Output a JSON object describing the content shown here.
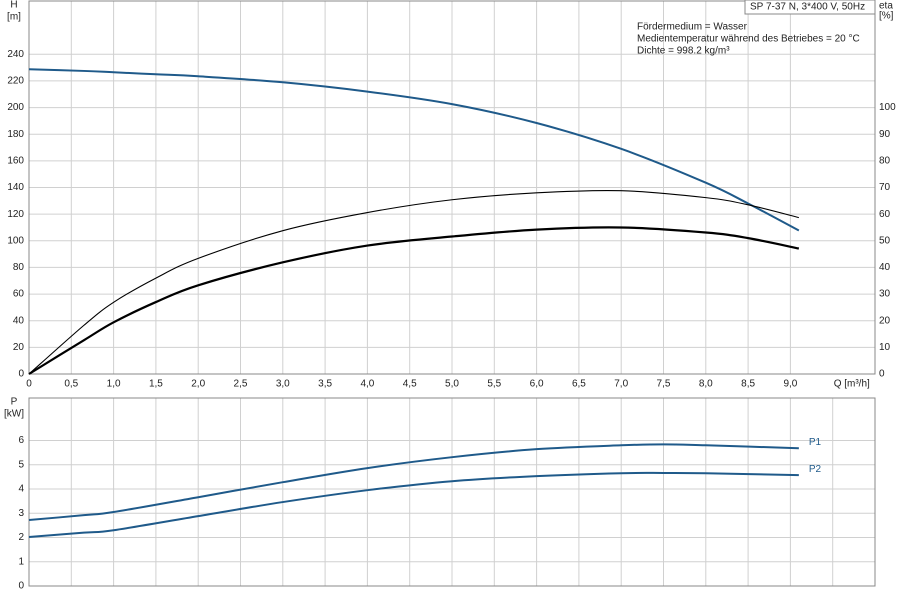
{
  "chart_data": [
    {
      "type": "line",
      "title": "SP 7-37 N, 3*400 V, 50Hz",
      "annotations": [
        "Fördermedium = Wasser",
        "Medientemperatur während des Betriebes = 20 °C",
        "Dichte = 998.2 kg/m³"
      ],
      "ylabel": "H",
      "yunit": "[m]",
      "y2label": "eta",
      "y2unit": "[%]",
      "xlabel": "Q [m³/h]",
      "xlim": [
        0,
        10
      ],
      "xticks": [
        0,
        {
          "value": 0.5,
          "label": "0,5"
        },
        {
          "value": 1,
          "label": "1,0"
        },
        {
          "value": 1.5,
          "label": "1,5"
        },
        {
          "value": 2,
          "label": "2,0"
        },
        {
          "value": 2.5,
          "label": "2,5"
        },
        {
          "value": 3,
          "label": "3,0"
        },
        {
          "value": 3.5,
          "label": "3,5"
        },
        {
          "value": 4,
          "label": "4,0"
        },
        {
          "value": 4.5,
          "label": "4,5"
        },
        {
          "value": 5,
          "label": "5,0"
        },
        {
          "value": 5.5,
          "label": "5,5"
        },
        {
          "value": 6,
          "label": "6,0"
        },
        {
          "value": 6.5,
          "label": "6,5"
        },
        {
          "value": 7,
          "label": "7,0"
        },
        {
          "value": 7.5,
          "label": "7,5"
        },
        {
          "value": 8,
          "label": "8,0"
        },
        {
          "value": 8.5,
          "label": "8,5"
        },
        {
          "value": 9,
          "label": "9,0"
        }
      ],
      "ylim": [
        0,
        280
      ],
      "yticks": [
        0,
        20,
        40,
        60,
        80,
        100,
        120,
        140,
        160,
        180,
        200,
        220,
        240
      ],
      "y2lim": [
        0,
        140
      ],
      "y2ticks": [
        0,
        10,
        20,
        30,
        40,
        50,
        60,
        70,
        80,
        90,
        100
      ],
      "grid": true,
      "x": [
        0,
        0.65,
        1,
        1.5,
        2,
        3,
        4,
        5,
        6,
        7,
        8,
        8.5,
        9.1
      ],
      "series": [
        {
          "color": "#1f5a8a",
          "values": [
            228.8,
            227.5,
            226.5,
            225,
            223.5,
            219,
            212,
            202.6,
            188.4,
            169,
            143.6,
            128,
            107.7
          ]
        },
        {
          "color": "#000000",
          "axis": "y2",
          "values": [
            0,
            18.3,
            26.9,
            36,
            43.4,
            53.8,
            60.6,
            65.4,
            68,
            68.8,
            66.2,
            63.5,
            58.7
          ]
        },
        {
          "color": "#000000",
          "axis": "y2",
          "values": [
            0,
            12.7,
            19.4,
            27,
            33.3,
            41.9,
            48.2,
            51.6,
            54.2,
            55,
            53.1,
            51,
            47.1
          ]
        }
      ]
    },
    {
      "type": "line",
      "ylabel": "P",
      "yunit": "[kW]",
      "xlim": [
        0,
        10
      ],
      "xticks": [
        0.5,
        1,
        1.5,
        2,
        2.5,
        3,
        3.5,
        4,
        4.5,
        5,
        5.5,
        6,
        6.5,
        7,
        7.5,
        8,
        8.5,
        9,
        9.5
      ],
      "xtick_labels": false,
      "ylim": [
        0,
        7.75
      ],
      "yticks": [
        0,
        1,
        2,
        3,
        4,
        5,
        6
      ],
      "grid": true,
      "x": [
        0,
        0.65,
        1,
        2,
        3,
        4,
        5,
        6,
        7,
        7.5,
        8,
        9.1
      ],
      "series": [
        {
          "name": "P1",
          "color": "#1f5a8a",
          "values": [
            2.72,
            2.92,
            3.05,
            3.66,
            4.28,
            4.86,
            5.31,
            5.64,
            5.8,
            5.84,
            5.8,
            5.68
          ]
        },
        {
          "name": "P2",
          "color": "#1f5a8a",
          "values": [
            2.02,
            2.2,
            2.3,
            2.88,
            3.46,
            3.95,
            4.32,
            4.53,
            4.65,
            4.66,
            4.65,
            4.57
          ]
        }
      ]
    }
  ]
}
